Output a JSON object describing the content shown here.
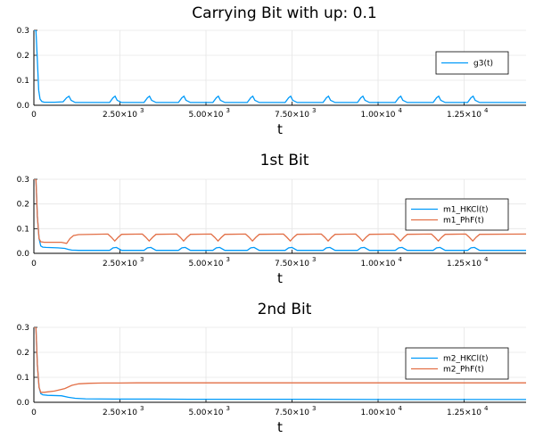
{
  "chart_data": [
    {
      "type": "line",
      "title": "Carrying Bit with up: 0.1",
      "xlabel": "t",
      "ylabel": "",
      "xlim": [
        0,
        14300
      ],
      "ylim": [
        0,
        0.3
      ],
      "grid": true,
      "legend": "right",
      "x_ticks": [
        {
          "value": 0,
          "mantissa": "0",
          "exponent": ""
        },
        {
          "value": 2500,
          "mantissa": "2.50×10",
          "exponent": "3"
        },
        {
          "value": 5000,
          "mantissa": "5.00×10",
          "exponent": "3"
        },
        {
          "value": 7500,
          "mantissa": "7.50×10",
          "exponent": "3"
        },
        {
          "value": 10000,
          "mantissa": "1.00×10",
          "exponent": "4"
        },
        {
          "value": 12500,
          "mantissa": "1.25×10",
          "exponent": "4"
        }
      ],
      "y_ticks": [
        {
          "value": 0.0,
          "label": "0.0"
        },
        {
          "value": 0.1,
          "label": "0.1"
        },
        {
          "value": 0.2,
          "label": "0.2"
        },
        {
          "value": 0.3,
          "label": "0.3"
        }
      ],
      "series": [
        {
          "name": "g3(t)",
          "color": "#009AFA",
          "x": [
            0,
            60,
            100,
            140,
            180,
            230,
            300,
            600,
            850,
            950,
            1020,
            1080,
            1200,
            2200,
            2300,
            2360,
            2420,
            2550,
            3200,
            3300,
            3360,
            3420,
            3550,
            4200,
            4300,
            4360,
            4420,
            4550,
            5200,
            5300,
            5360,
            5420,
            5550,
            6200,
            6300,
            6360,
            6420,
            6550,
            7300,
            7400,
            7460,
            7520,
            7650,
            8400,
            8500,
            8560,
            8620,
            8750,
            9400,
            9500,
            9560,
            9620,
            9750,
            10500,
            10600,
            10660,
            10720,
            10850,
            11600,
            11700,
            11760,
            11820,
            11950,
            12600,
            12700,
            12760,
            12820,
            12950,
            14300
          ],
          "y": [
            0.3,
            0.3,
            0.18,
            0.06,
            0.025,
            0.015,
            0.012,
            0.012,
            0.014,
            0.03,
            0.036,
            0.02,
            0.011,
            0.011,
            0.03,
            0.036,
            0.02,
            0.011,
            0.011,
            0.03,
            0.036,
            0.02,
            0.011,
            0.011,
            0.03,
            0.036,
            0.02,
            0.011,
            0.011,
            0.03,
            0.036,
            0.02,
            0.011,
            0.011,
            0.03,
            0.036,
            0.02,
            0.011,
            0.011,
            0.03,
            0.036,
            0.02,
            0.011,
            0.011,
            0.03,
            0.036,
            0.02,
            0.011,
            0.011,
            0.03,
            0.036,
            0.02,
            0.011,
            0.011,
            0.03,
            0.036,
            0.02,
            0.011,
            0.011,
            0.03,
            0.036,
            0.02,
            0.011,
            0.011,
            0.03,
            0.036,
            0.02,
            0.011,
            0.011
          ]
        }
      ]
    },
    {
      "type": "line",
      "title": "1st Bit",
      "xlabel": "t",
      "ylabel": "",
      "xlim": [
        0,
        14300
      ],
      "ylim": [
        0,
        0.3
      ],
      "grid": true,
      "legend": "right",
      "x_ticks": [
        {
          "value": 0,
          "mantissa": "0",
          "exponent": ""
        },
        {
          "value": 2500,
          "mantissa": "2.50×10",
          "exponent": "3"
        },
        {
          "value": 5000,
          "mantissa": "5.00×10",
          "exponent": "3"
        },
        {
          "value": 7500,
          "mantissa": "7.50×10",
          "exponent": "3"
        },
        {
          "value": 10000,
          "mantissa": "1.00×10",
          "exponent": "4"
        },
        {
          "value": 12500,
          "mantissa": "1.25×10",
          "exponent": "4"
        }
      ],
      "y_ticks": [
        {
          "value": 0.0,
          "label": "0.0"
        },
        {
          "value": 0.1,
          "label": "0.1"
        },
        {
          "value": 0.2,
          "label": "0.2"
        },
        {
          "value": 0.3,
          "label": "0.3"
        }
      ],
      "series": [
        {
          "name": "m1_HKCl(t)",
          "color": "#009AFA",
          "x": [
            0,
            60,
            100,
            150,
            200,
            260,
            350,
            700,
            900,
            1000,
            1100,
            1300,
            2200,
            2300,
            2400,
            2550,
            3200,
            3300,
            3400,
            3550,
            4200,
            4300,
            4400,
            4550,
            5200,
            5300,
            5400,
            5550,
            6200,
            6300,
            6400,
            6550,
            7300,
            7400,
            7500,
            7650,
            8400,
            8500,
            8600,
            8750,
            9400,
            9500,
            9600,
            9750,
            10500,
            10600,
            10700,
            10850,
            11600,
            11700,
            11800,
            11950,
            12600,
            12700,
            12800,
            12950,
            14300
          ],
          "y": [
            0.3,
            0.3,
            0.15,
            0.06,
            0.03,
            0.025,
            0.024,
            0.022,
            0.02,
            0.016,
            0.013,
            0.012,
            0.012,
            0.022,
            0.024,
            0.012,
            0.012,
            0.022,
            0.024,
            0.012,
            0.012,
            0.022,
            0.024,
            0.012,
            0.012,
            0.022,
            0.024,
            0.012,
            0.012,
            0.022,
            0.024,
            0.012,
            0.012,
            0.022,
            0.024,
            0.012,
            0.012,
            0.022,
            0.024,
            0.012,
            0.012,
            0.022,
            0.024,
            0.012,
            0.012,
            0.022,
            0.024,
            0.012,
            0.012,
            0.022,
            0.024,
            0.012,
            0.012,
            0.022,
            0.024,
            0.012,
            0.012
          ]
        },
        {
          "name": "m1_PhF(t)",
          "color": "#E26F46",
          "x": [
            0,
            60,
            100,
            150,
            200,
            300,
            500,
            800,
            950,
            1050,
            1150,
            1300,
            2150,
            2250,
            2350,
            2450,
            2550,
            3150,
            3250,
            3350,
            3450,
            3550,
            4150,
            4250,
            4350,
            4450,
            4550,
            5150,
            5250,
            5350,
            5450,
            5550,
            6150,
            6250,
            6350,
            6450,
            6550,
            7250,
            7350,
            7450,
            7550,
            7650,
            8350,
            8450,
            8550,
            8650,
            8750,
            9350,
            9450,
            9550,
            9650,
            9750,
            10450,
            10550,
            10650,
            10750,
            10850,
            11550,
            11650,
            11750,
            11850,
            11950,
            12550,
            12650,
            12750,
            12850,
            12950,
            14300
          ],
          "y": [
            0.3,
            0.3,
            0.15,
            0.06,
            0.047,
            0.045,
            0.045,
            0.045,
            0.04,
            0.06,
            0.072,
            0.076,
            0.078,
            0.065,
            0.05,
            0.065,
            0.077,
            0.078,
            0.065,
            0.05,
            0.065,
            0.077,
            0.078,
            0.065,
            0.05,
            0.065,
            0.077,
            0.078,
            0.065,
            0.05,
            0.065,
            0.077,
            0.078,
            0.065,
            0.05,
            0.065,
            0.077,
            0.078,
            0.065,
            0.05,
            0.065,
            0.077,
            0.078,
            0.065,
            0.05,
            0.065,
            0.077,
            0.078,
            0.065,
            0.05,
            0.065,
            0.077,
            0.078,
            0.065,
            0.05,
            0.065,
            0.077,
            0.078,
            0.065,
            0.05,
            0.065,
            0.077,
            0.078,
            0.065,
            0.05,
            0.065,
            0.077,
            0.078
          ]
        }
      ]
    },
    {
      "type": "line",
      "title": "2nd Bit",
      "xlabel": "t",
      "ylabel": "",
      "xlim": [
        0,
        14300
      ],
      "ylim": [
        0,
        0.3
      ],
      "grid": true,
      "legend": "right",
      "x_ticks": [
        {
          "value": 0,
          "mantissa": "0",
          "exponent": ""
        },
        {
          "value": 2500,
          "mantissa": "2.50×10",
          "exponent": "3"
        },
        {
          "value": 5000,
          "mantissa": "5.00×10",
          "exponent": "3"
        },
        {
          "value": 7500,
          "mantissa": "7.50×10",
          "exponent": "3"
        },
        {
          "value": 10000,
          "mantissa": "1.00×10",
          "exponent": "4"
        },
        {
          "value": 12500,
          "mantissa": "1.25×10",
          "exponent": "4"
        }
      ],
      "y_ticks": [
        {
          "value": 0.0,
          "label": "0.0"
        },
        {
          "value": 0.1,
          "label": "0.1"
        },
        {
          "value": 0.2,
          "label": "0.2"
        },
        {
          "value": 0.3,
          "label": "0.3"
        }
      ],
      "series": [
        {
          "name": "m2_HKCl(t)",
          "color": "#009AFA",
          "x": [
            0,
            60,
            100,
            150,
            200,
            260,
            400,
            800,
            1000,
            1200,
            1500,
            2500,
            3500,
            4500,
            6000,
            8000,
            10000,
            12000,
            14300
          ],
          "y": [
            0.3,
            0.3,
            0.15,
            0.06,
            0.035,
            0.03,
            0.028,
            0.026,
            0.02,
            0.016,
            0.014,
            0.013,
            0.013,
            0.012,
            0.012,
            0.012,
            0.011,
            0.011,
            0.011
          ]
        },
        {
          "name": "m2_PhF(t)",
          "color": "#E26F46",
          "x": [
            0,
            60,
            100,
            150,
            200,
            300,
            600,
            900,
            1100,
            1300,
            1600,
            2000,
            2500,
            3000,
            3500,
            4000,
            5000,
            6000,
            7000,
            8000,
            9000,
            10000,
            11000,
            12000,
            13000,
            14300
          ],
          "y": [
            0.3,
            0.3,
            0.15,
            0.06,
            0.04,
            0.04,
            0.045,
            0.055,
            0.068,
            0.074,
            0.076,
            0.077,
            0.077,
            0.078,
            0.078,
            0.078,
            0.078,
            0.078,
            0.078,
            0.078,
            0.078,
            0.078,
            0.078,
            0.078,
            0.078,
            0.078
          ]
        }
      ]
    }
  ]
}
